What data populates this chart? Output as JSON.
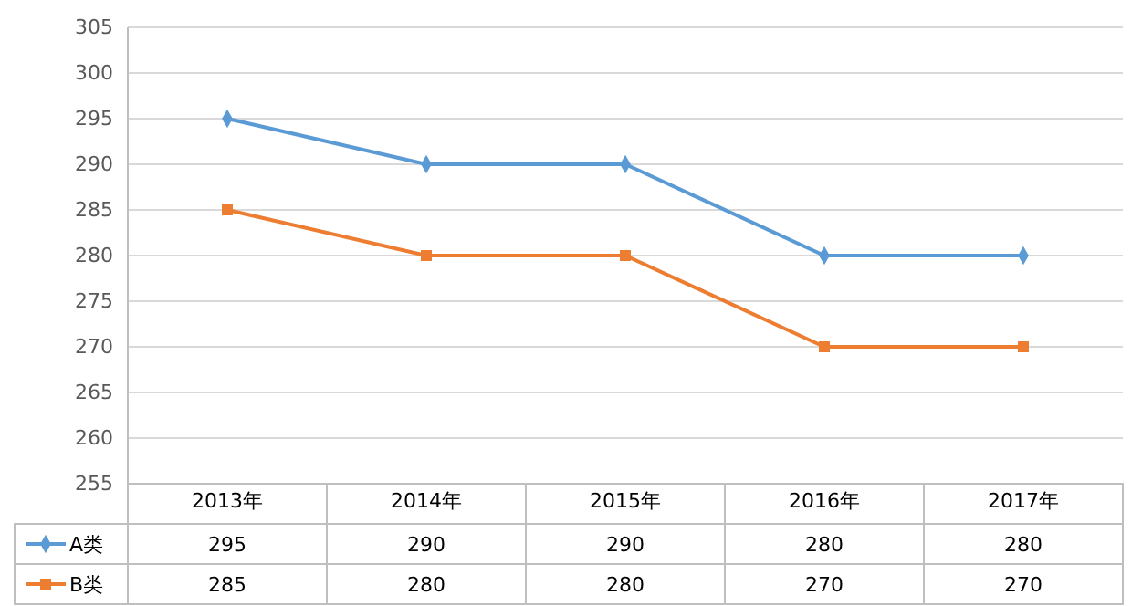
{
  "chart_data": {
    "type": "line",
    "categories": [
      "2013年",
      "2014年",
      "2015年",
      "2016年",
      "2017年"
    ],
    "series": [
      {
        "name": "A类",
        "color": "#5b9bd5",
        "marker": "diamond",
        "values": [
          295,
          290,
          290,
          280,
          280
        ]
      },
      {
        "name": "B类",
        "color": "#ed7d31",
        "marker": "square",
        "values": [
          285,
          280,
          280,
          270,
          270
        ]
      }
    ],
    "ylim": [
      255,
      305
    ],
    "yticks": [
      255,
      260,
      265,
      270,
      275,
      280,
      285,
      290,
      295,
      300,
      305
    ],
    "grid": "y",
    "legend": "bottom left",
    "data_labels": true
  }
}
